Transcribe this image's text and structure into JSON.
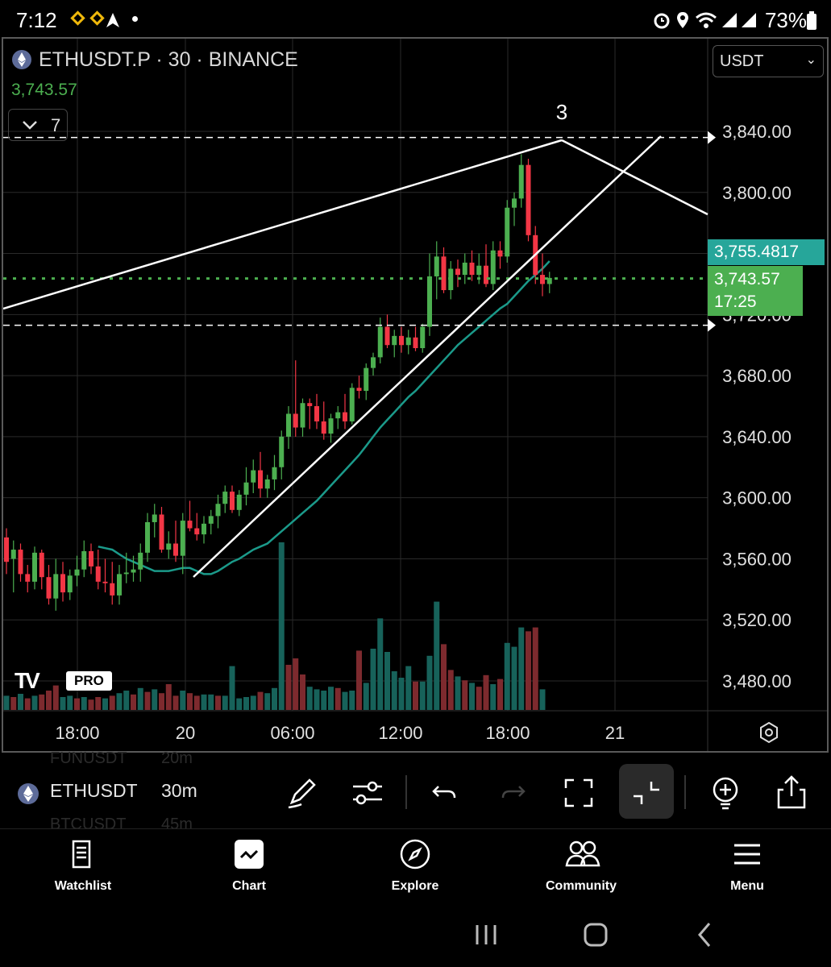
{
  "status_bar": {
    "time": "7:12",
    "battery": "73%",
    "icons": [
      "binance-icon",
      "binance-icon",
      "location-arrow-icon",
      "dot-icon",
      "alarm-icon",
      "location-icon",
      "wifi-icon",
      "signal-icon",
      "signal-icon",
      "battery-icon"
    ]
  },
  "chart_header": {
    "symbol_line": "ETHUSDT.P · 30 · BINANCE",
    "last_price": "3,743.57",
    "indicator_count": "7",
    "currency": "USDT"
  },
  "chart_annotation": {
    "wave_label": "3"
  },
  "price_tags": {
    "ma_value": "3,755.4817",
    "current_price": "3,743.57",
    "countdown": "17:25",
    "partial_label": "3,720.00"
  },
  "colors": {
    "up": "#26a69a",
    "up_candle": "#4caf50",
    "down": "#f23645",
    "volume_up": "#17625a",
    "volume_down": "#7d2a2e",
    "ma": "#1b9a8a",
    "grid": "#2a2a2a"
  },
  "branding": {
    "logo_text": "TV",
    "pro_badge": "PRO"
  },
  "chart_data": {
    "type": "candlestick",
    "symbol": "ETHUSDT.P",
    "interval": "30",
    "exchange": "BINANCE",
    "y_ticks": [
      "3,840.00",
      "3,800.00",
      "3,680.00",
      "3,640.00",
      "3,600.00",
      "3,560.00",
      "3,520.00",
      "3,480.00"
    ],
    "x_ticks": [
      "18:00",
      "20",
      "06:00",
      "12:00",
      "18:00",
      "21"
    ],
    "ylim": [
      3460,
      3860
    ],
    "candles": [
      [
        3574,
        3580,
        3550,
        3558
      ],
      [
        3560,
        3572,
        3538,
        3566
      ],
      [
        3566,
        3570,
        3545,
        3550
      ],
      [
        3550,
        3556,
        3538,
        3545
      ],
      [
        3545,
        3568,
        3540,
        3564
      ],
      [
        3564,
        3566,
        3540,
        3548
      ],
      [
        3548,
        3556,
        3530,
        3534
      ],
      [
        3534,
        3560,
        3526,
        3550
      ],
      [
        3550,
        3558,
        3532,
        3538
      ],
      [
        3538,
        3553,
        3533,
        3549
      ],
      [
        3549,
        3562,
        3542,
        3553
      ],
      [
        3553,
        3572,
        3548,
        3565
      ],
      [
        3565,
        3570,
        3550,
        3555
      ],
      [
        3555,
        3566,
        3540,
        3545
      ],
      [
        3545,
        3560,
        3538,
        3544
      ],
      [
        3544,
        3558,
        3530,
        3536
      ],
      [
        3536,
        3556,
        3530,
        3550
      ],
      [
        3550,
        3564,
        3544,
        3551
      ],
      [
        3551,
        3562,
        3545,
        3553
      ],
      [
        3553,
        3570,
        3545,
        3564
      ],
      [
        3564,
        3590,
        3558,
        3584
      ],
      [
        3584,
        3596,
        3574,
        3589
      ],
      [
        3589,
        3594,
        3564,
        3566
      ],
      [
        3566,
        3578,
        3560,
        3570
      ],
      [
        3570,
        3585,
        3558,
        3562
      ],
      [
        3562,
        3590,
        3550,
        3585
      ],
      [
        3585,
        3598,
        3578,
        3580
      ],
      [
        3580,
        3590,
        3572,
        3576
      ],
      [
        3576,
        3588,
        3570,
        3583
      ],
      [
        3583,
        3592,
        3576,
        3588
      ],
      [
        3588,
        3602,
        3580,
        3596
      ],
      [
        3596,
        3608,
        3590,
        3604
      ],
      [
        3604,
        3608,
        3590,
        3592
      ],
      [
        3592,
        3605,
        3588,
        3602
      ],
      [
        3602,
        3620,
        3595,
        3610
      ],
      [
        3610,
        3625,
        3603,
        3618
      ],
      [
        3618,
        3630,
        3600,
        3606
      ],
      [
        3606,
        3615,
        3600,
        3612
      ],
      [
        3612,
        3628,
        3605,
        3620
      ],
      [
        3620,
        3644,
        3612,
        3640
      ],
      [
        3640,
        3660,
        3632,
        3655
      ],
      [
        3655,
        3690,
        3640,
        3646
      ],
      [
        3646,
        3665,
        3640,
        3662
      ],
      [
        3662,
        3665,
        3645,
        3660
      ],
      [
        3660,
        3668,
        3645,
        3650
      ],
      [
        3650,
        3663,
        3638,
        3642
      ],
      [
        3642,
        3655,
        3636,
        3652
      ],
      [
        3652,
        3660,
        3645,
        3656
      ],
      [
        3656,
        3668,
        3645,
        3650
      ],
      [
        3650,
        3675,
        3648,
        3672
      ],
      [
        3672,
        3680,
        3665,
        3670
      ],
      [
        3670,
        3688,
        3664,
        3685
      ],
      [
        3685,
        3695,
        3680,
        3692
      ],
      [
        3692,
        3718,
        3688,
        3712
      ],
      [
        3712,
        3720,
        3698,
        3700
      ],
      [
        3700,
        3710,
        3692,
        3706
      ],
      [
        3706,
        3712,
        3695,
        3700
      ],
      [
        3700,
        3710,
        3694,
        3705
      ],
      [
        3705,
        3712,
        3696,
        3698
      ],
      [
        3698,
        3714,
        3695,
        3712
      ],
      [
        3712,
        3760,
        3706,
        3745
      ],
      [
        3745,
        3768,
        3730,
        3758
      ],
      [
        3758,
        3764,
        3734,
        3736
      ],
      [
        3736,
        3755,
        3730,
        3750
      ],
      [
        3750,
        3756,
        3738,
        3746
      ],
      [
        3746,
        3760,
        3740,
        3754
      ],
      [
        3754,
        3762,
        3742,
        3746
      ],
      [
        3746,
        3760,
        3740,
        3752
      ],
      [
        3752,
        3766,
        3738,
        3740
      ],
      [
        3740,
        3768,
        3736,
        3762
      ],
      [
        3762,
        3768,
        3750,
        3758
      ],
      [
        3758,
        3795,
        3754,
        3790
      ],
      [
        3790,
        3800,
        3778,
        3796
      ],
      [
        3796,
        3825,
        3790,
        3818
      ],
      [
        3818,
        3822,
        3768,
        3772
      ],
      [
        3772,
        3778,
        3740,
        3746
      ],
      [
        3746,
        3760,
        3732,
        3740
      ],
      [
        3740,
        3748,
        3734,
        3744
      ]
    ],
    "volume": [
      [
        22,
        0
      ],
      [
        20,
        1
      ],
      [
        25,
        0
      ],
      [
        18,
        1
      ],
      [
        22,
        0
      ],
      [
        24,
        1
      ],
      [
        30,
        1
      ],
      [
        38,
        1
      ],
      [
        20,
        0
      ],
      [
        22,
        0
      ],
      [
        18,
        1
      ],
      [
        20,
        0
      ],
      [
        16,
        1
      ],
      [
        20,
        1
      ],
      [
        18,
        0
      ],
      [
        22,
        1
      ],
      [
        26,
        0
      ],
      [
        30,
        0
      ],
      [
        24,
        1
      ],
      [
        34,
        0
      ],
      [
        28,
        1
      ],
      [
        32,
        0
      ],
      [
        26,
        1
      ],
      [
        40,
        1
      ],
      [
        22,
        1
      ],
      [
        30,
        0
      ],
      [
        26,
        1
      ],
      [
        22,
        1
      ],
      [
        24,
        0
      ],
      [
        24,
        0
      ],
      [
        22,
        1
      ],
      [
        22,
        0
      ],
      [
        68,
        0
      ],
      [
        18,
        0
      ],
      [
        20,
        0
      ],
      [
        22,
        0
      ],
      [
        28,
        1
      ],
      [
        26,
        0
      ],
      [
        34,
        0
      ],
      [
        260,
        0
      ],
      [
        70,
        1
      ],
      [
        80,
        1
      ],
      [
        55,
        1
      ],
      [
        36,
        0
      ],
      [
        32,
        0
      ],
      [
        30,
        0
      ],
      [
        36,
        0
      ],
      [
        34,
        1
      ],
      [
        28,
        0
      ],
      [
        30,
        0
      ],
      [
        92,
        1
      ],
      [
        42,
        0
      ],
      [
        95,
        0
      ],
      [
        142,
        0
      ],
      [
        90,
        0
      ],
      [
        60,
        0
      ],
      [
        50,
        0
      ],
      [
        68,
        0
      ],
      [
        44,
        1
      ],
      [
        44,
        0
      ],
      [
        84,
        0
      ],
      [
        168,
        0
      ],
      [
        102,
        1
      ],
      [
        62,
        1
      ],
      [
        52,
        0
      ],
      [
        46,
        1
      ],
      [
        42,
        0
      ],
      [
        36,
        1
      ],
      [
        54,
        1
      ],
      [
        40,
        0
      ],
      [
        48,
        1
      ],
      [
        104,
        0
      ],
      [
        98,
        0
      ],
      [
        128,
        0
      ],
      [
        122,
        1
      ],
      [
        128,
        1
      ],
      [
        32,
        0
      ]
    ],
    "ma_line": [
      3568,
      3567,
      3566,
      3563,
      3560,
      3558,
      3556,
      3554,
      3552,
      3552,
      3552,
      3553,
      3554,
      3554,
      3552,
      3550,
      3550,
      3552,
      3555,
      3558,
      3560,
      3563,
      3566,
      3568,
      3570,
      3574,
      3578,
      3582,
      3586,
      3590,
      3594,
      3598,
      3603,
      3608,
      3613,
      3618,
      3623,
      3628,
      3634,
      3640,
      3646,
      3651,
      3656,
      3661,
      3666,
      3670,
      3675,
      3680,
      3685,
      3690,
      3695,
      3700,
      3704,
      3708,
      3712,
      3716,
      3720,
      3724,
      3727,
      3732,
      3737,
      3742,
      3746,
      3750,
      3755
    ],
    "lines": {
      "dashed_top": 3836,
      "dashed_bottom": 3713,
      "current_price_line": 3743.57
    }
  },
  "toolbar": {
    "symbol": "ETHUSDT",
    "interval": "30m",
    "ghost_above": [
      "FUNUSDT",
      "20m"
    ],
    "ghost_below": [
      "BTCUSDT",
      "45m"
    ],
    "buttons": [
      "pencil-icon",
      "sliders-icon",
      "undo-icon",
      "redo-icon",
      "fullscreen-icon",
      "collapse-icon",
      "add-alert-icon",
      "share-icon"
    ]
  },
  "bottom_nav": [
    {
      "label": "Watchlist",
      "icon": "watchlist-icon"
    },
    {
      "label": "Chart",
      "icon": "chart-icon"
    },
    {
      "label": "Explore",
      "icon": "compass-icon"
    },
    {
      "label": "Community",
      "icon": "community-icon"
    },
    {
      "label": "Menu",
      "icon": "menu-icon"
    }
  ]
}
